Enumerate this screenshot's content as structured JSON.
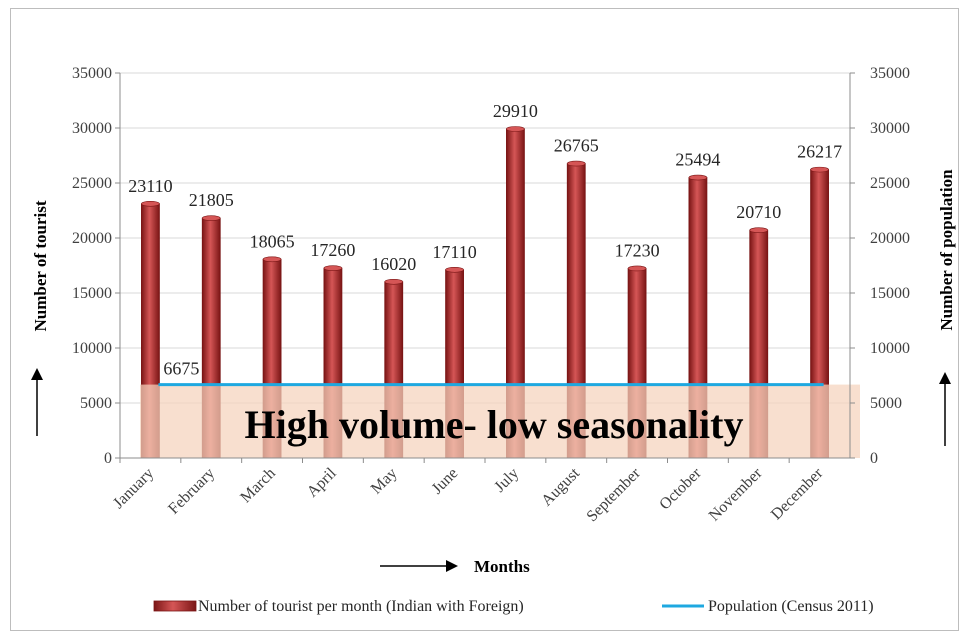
{
  "chart_data": {
    "type": "bar",
    "categories": [
      "January",
      "February",
      "March",
      "April",
      "May",
      "June",
      "July",
      "August",
      "September",
      "October",
      "November",
      "December"
    ],
    "series": [
      {
        "name": "Number of tourist per month (Indian with Foreign)",
        "type": "bar",
        "axis": "left",
        "values": [
          23110,
          21805,
          18065,
          17260,
          16020,
          17110,
          29910,
          26765,
          17230,
          25494,
          20710,
          26217
        ]
      },
      {
        "name": "Population (Census 2011)",
        "type": "line",
        "axis": "right",
        "values": [
          6675,
          6675,
          6675,
          6675,
          6675,
          6675,
          6675,
          6675,
          6675,
          6675,
          6675,
          6675
        ]
      }
    ],
    "population_label": "6675",
    "xlabel": "Months",
    "ylabel": "Number of tourist",
    "y2label": "Number of population",
    "ylim": [
      0,
      35000
    ],
    "y2lim": [
      0,
      35000
    ],
    "yticks": [
      0,
      5000,
      10000,
      15000,
      20000,
      25000,
      30000,
      35000
    ],
    "grid": "horizontal",
    "legend_position": "bottom",
    "annotation": "High volume- low seasonality",
    "colors": {
      "bar": "#b22a2a",
      "bar_dark": "#7a1515",
      "bar_light": "#d55656",
      "line": "#1ea8e0",
      "band": "#f5d2bd",
      "grid": "#d9d9d9",
      "axis": "#8c8c8c"
    }
  }
}
